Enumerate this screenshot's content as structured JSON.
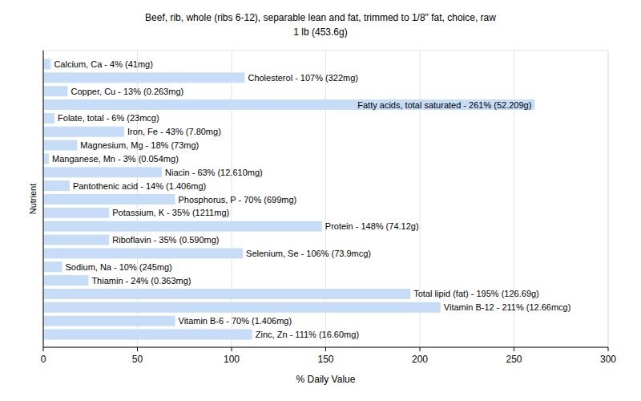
{
  "chart_data": {
    "type": "bar",
    "orientation": "horizontal",
    "title": "Beef, rib, whole (ribs 6-12), separable lean and fat, trimmed to 1/8\" fat, choice, raw",
    "subtitle": "1 lb (453.6g)",
    "x_label": "% Daily Value",
    "y_label": "Nutrient",
    "categories": [
      null,
      null,
      null,
      null,
      null,
      null,
      null,
      null,
      null,
      null,
      null,
      null,
      null,
      null,
      null,
      null,
      null,
      null,
      null,
      null,
      null
    ],
    "values": [
      4,
      107,
      13,
      261,
      6,
      43,
      18,
      3,
      63,
      14,
      70,
      35,
      148,
      35,
      106,
      10,
      24,
      195,
      211,
      70,
      111
    ],
    "value_labels": [
      "Calcium, Ca - 4% (41mg)",
      "Cholesterol - 107% (322mg)",
      "Copper, Cu - 13% (0.263mg)",
      "Fatty acids, total saturated - 261% (52.209g)",
      "Folate, total - 6% (23mcg)",
      "Iron, Fe - 43% (7.80mg)",
      "Magnesium, Mg - 18% (73mg)",
      "Manganese, Mn - 3% (0.054mg)",
      "Niacin - 63% (12.610mg)",
      "Pantothenic acid - 14% (1.406mg)",
      "Phosphorus, P - 70% (699mg)",
      "Potassium, K - 35% (1211mg)",
      "Protein - 148% (74.12g)",
      "Riboflavin - 35% (0.590mg)",
      "Selenium, Se - 106% (73.9mcg)",
      "Sodium, Na - 10% (245mg)",
      "Thiamin - 24% (0.363mg)",
      "Total lipid (fat) - 195% (126.69g)",
      "Vitamin B-12 - 211% (12.66mcg)",
      "Vitamin B-6 - 70% (1.406mg)",
      "Zinc, Zn - 111% (16.60mg)"
    ],
    "color": "#c6dcf7",
    "xlim": [
      0,
      300
    ],
    "xticks": [
      0,
      50,
      100,
      150,
      200,
      250,
      300
    ],
    "grid": true,
    "data_labels": true,
    "tick_labels": "x"
  }
}
